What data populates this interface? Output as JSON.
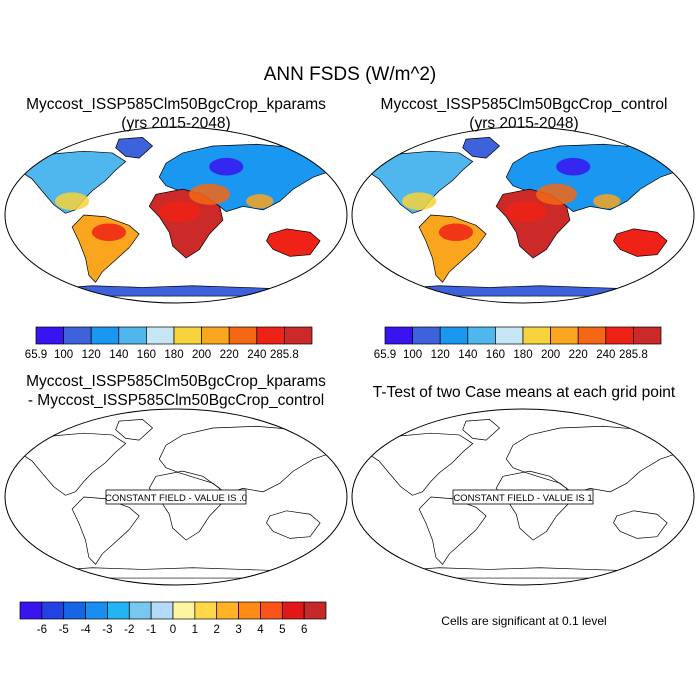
{
  "figure": {
    "title": "ANN FSDS (W/m^2)"
  },
  "panels": [
    {
      "id": "p1",
      "title_lines": [
        "Myccost_ISSP585Clm50BgcCrop_kparams",
        "(yrs 2015-2048)"
      ],
      "field": "filled"
    },
    {
      "id": "p2",
      "title_lines": [
        "Myccost_ISSP585Clm50BgcCrop_control",
        "(yrs 2015-2048)"
      ],
      "field": "filled"
    },
    {
      "id": "p3",
      "title_lines": [
        "Myccost_ISSP585Clm50BgcCrop_kparams",
        "- Myccost_ISSP585Clm50BgcCrop_control"
      ],
      "field": "constant",
      "annotation": "CONSTANT FIELD - VALUE IS .0"
    },
    {
      "id": "p4",
      "title_lines": [
        "T-Test of two Case means at each grid point"
      ],
      "field": "constant",
      "annotation": "CONSTANT FIELD - VALUE IS 1"
    }
  ],
  "colorbars": {
    "abs": {
      "labels": [
        "65.9",
        "100",
        "120",
        "140",
        "160",
        "180",
        "200",
        "220",
        "240",
        "285.8"
      ],
      "colors": [
        "#3a14f0",
        "#3d62dc",
        "#1a97f0",
        "#4fb6ee",
        "#c6e6f5",
        "#f7d23a",
        "#f9a51e",
        "#f46714",
        "#ee2216",
        "#cc2a28"
      ]
    },
    "diff": {
      "labels": [
        "-6",
        "-5",
        "-4",
        "-3",
        "-2",
        "-1",
        "0",
        "1",
        "2",
        "3",
        "4",
        "5",
        "6"
      ],
      "colors": [
        "#3a14f0",
        "#2242e6",
        "#1466e6",
        "#1a8ef0",
        "#22b4f4",
        "#76c8f0",
        "#b4dcf8",
        "#fff5a0",
        "#ffd84a",
        "#ffb224",
        "#ff8a14",
        "#fc5418",
        "#e21818",
        "#c42a2a"
      ]
    }
  },
  "significance_note": "Cells are significant at 0.1 level"
}
